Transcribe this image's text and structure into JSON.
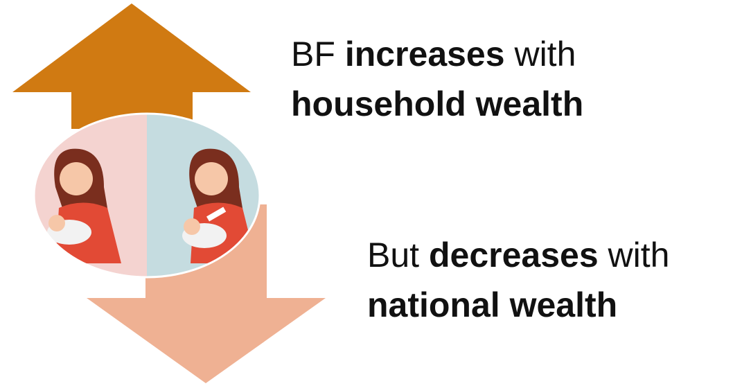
{
  "top_text": {
    "line1": [
      "BF",
      "increases",
      "with"
    ],
    "line2": "household wealth"
  },
  "bottom_text": {
    "line1": [
      "But",
      "decreases",
      "with"
    ],
    "line2": "national wealth"
  }
}
